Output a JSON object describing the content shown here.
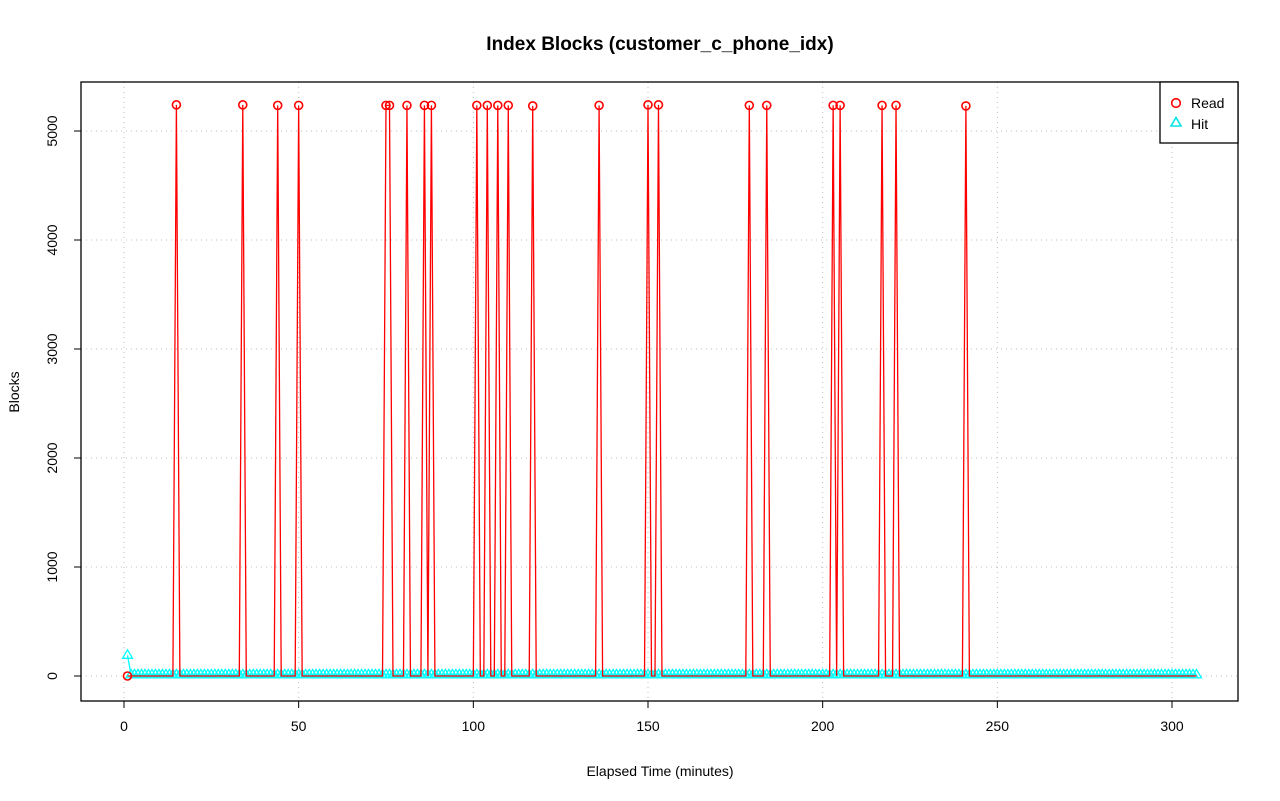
{
  "chart_data": {
    "type": "line",
    "title": "Index Blocks (customer_c_phone_idx)",
    "xlabel": "Elapsed Time (minutes)",
    "ylabel": "Blocks",
    "xlim": [
      0,
      308
    ],
    "ylim": [
      0,
      5250
    ],
    "xticks": [
      0,
      50,
      100,
      150,
      200,
      250,
      300
    ],
    "yticks": [
      0,
      1000,
      2000,
      3000,
      4000,
      5000
    ],
    "grid": true,
    "legend_position": "top-right",
    "x_start": 1,
    "x_end": 307,
    "series": [
      {
        "name": "Read",
        "color": "#ff0000",
        "marker": "circle",
        "baseline": 0,
        "points": [
          [
            1,
            0
          ],
          [
            15,
            5240
          ],
          [
            34,
            5240
          ],
          [
            44,
            5235
          ],
          [
            50,
            5235
          ],
          [
            75,
            5235
          ],
          [
            76,
            5235
          ],
          [
            81,
            5235
          ],
          [
            86,
            5235
          ],
          [
            88,
            5235
          ],
          [
            101,
            5235
          ],
          [
            104,
            5235
          ],
          [
            107,
            5235
          ],
          [
            110,
            5235
          ],
          [
            117,
            5230
          ],
          [
            136,
            5235
          ],
          [
            150,
            5240
          ],
          [
            153,
            5240
          ],
          [
            179,
            5235
          ],
          [
            184,
            5235
          ],
          [
            203,
            5235
          ],
          [
            205,
            5235
          ],
          [
            217,
            5235
          ],
          [
            221,
            5235
          ],
          [
            241,
            5230
          ]
        ]
      },
      {
        "name": "Hit",
        "color": "#00ffff",
        "marker": "triangle",
        "first_point": [
          1,
          190
        ],
        "baseline": 10
      }
    ]
  }
}
